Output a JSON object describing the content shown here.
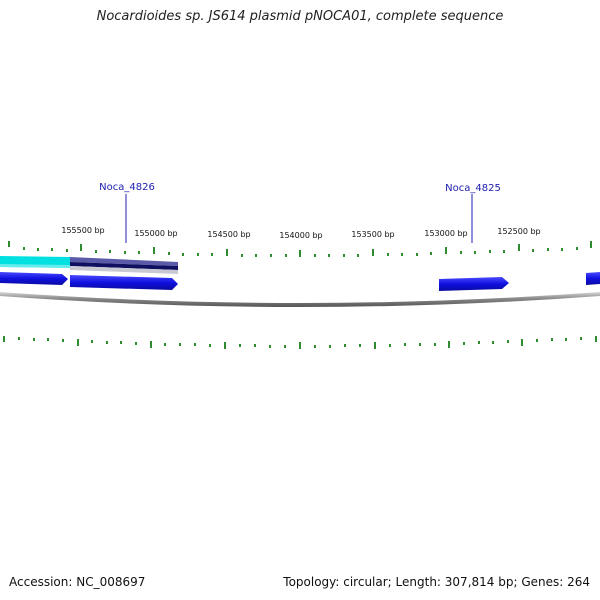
{
  "title": "Nocardioides sp. JS614 plasmid pNOCA01, complete sequence",
  "ticks": [
    {
      "label": "155500 bp"
    },
    {
      "label": "155000 bp"
    },
    {
      "label": "154500 bp"
    },
    {
      "label": "154000 bp"
    },
    {
      "label": "153500 bp"
    },
    {
      "label": "153000 bp"
    },
    {
      "label": "152500 bp"
    }
  ],
  "gene_labels": [
    {
      "name": "Noca_4826"
    },
    {
      "name": "Noca_4825"
    }
  ],
  "colors": {
    "tick": "#2e8b2e",
    "gene_blue": "#1010e0",
    "gene_cyan": "#00e0e0",
    "gene_purple": "#5a5aa8",
    "gene_navy": "#101060",
    "backbone": "#8a8a8a",
    "label": "#2020b0"
  },
  "footer": {
    "accession": "Accession: NC_008697",
    "summary": "Topology: circular; Length: 307,814 bp; Genes: 264"
  }
}
